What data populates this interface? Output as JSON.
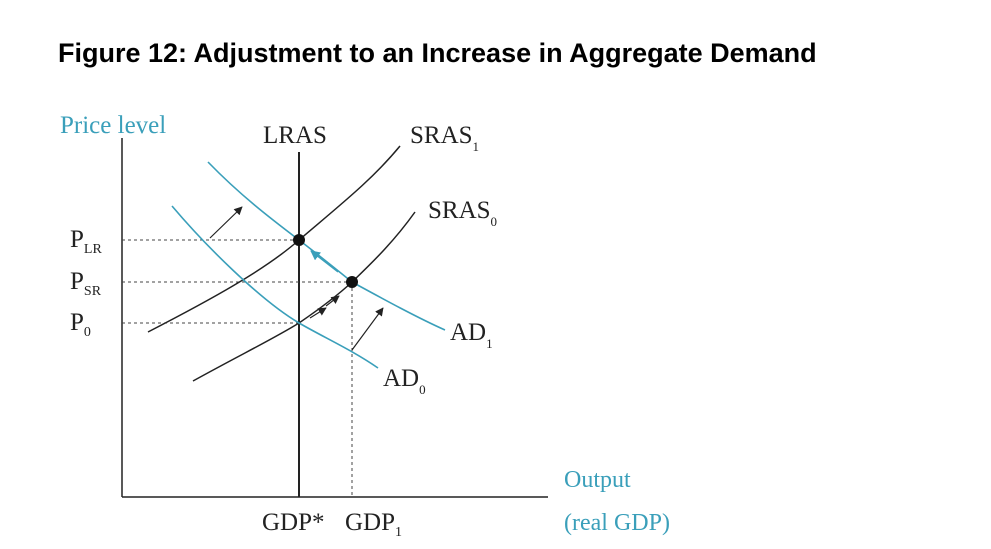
{
  "figure": {
    "title": "Figure 12: Adjustment to an Increase in Aggregate Demand",
    "y_axis_label": "Price level",
    "x_axis_label_line1": "Output",
    "x_axis_label_line2": "(real GDP)",
    "curves": {
      "lras": "LRAS",
      "sras1": {
        "base": "SRAS",
        "sub": "1"
      },
      "sras0": {
        "base": "SRAS",
        "sub": "0"
      },
      "ad1": {
        "base": "AD",
        "sub": "1"
      },
      "ad0": {
        "base": "AD",
        "sub": "0"
      }
    },
    "price_levels": [
      {
        "base": "P",
        "sub": "LR"
      },
      {
        "base": "P",
        "sub": "SR"
      },
      {
        "base": "P",
        "sub": "0"
      }
    ],
    "outputs": [
      {
        "base": "GDP*",
        "sub": ""
      },
      {
        "base": "GDP",
        "sub": "1"
      }
    ],
    "colors": {
      "curve_blue": "#3a9fba",
      "curve_black": "#222222"
    }
  }
}
